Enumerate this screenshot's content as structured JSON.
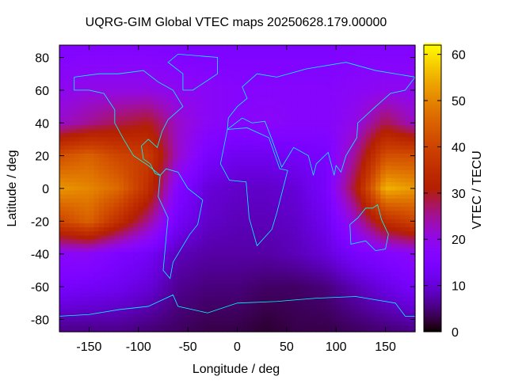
{
  "chart_data": {
    "type": "heatmap",
    "title": "UQRG-GIM Global VTEC maps 20250628.179.00000",
    "xlabel": "Longitude / deg",
    "ylabel": "Latitude / deg",
    "cblabel": "VTEC / TECU",
    "xlim": [
      -180,
      180
    ],
    "ylim": [
      -87.5,
      87.5
    ],
    "cbrange": [
      0,
      62
    ],
    "xticks": [
      -150,
      -100,
      -50,
      0,
      50,
      100,
      150
    ],
    "yticks": [
      80,
      60,
      40,
      20,
      0,
      -20,
      -40,
      -60,
      -80
    ],
    "cbticks": [
      0,
      10,
      20,
      30,
      40,
      50,
      60
    ],
    "palette": "black-purple-red-orange-yellow",
    "coastline_color": "#00ffff",
    "grid_lon": [
      -180,
      -150,
      -120,
      -90,
      -60,
      -30,
      0,
      30,
      60,
      90,
      120,
      150,
      180
    ],
    "grid_lat": [
      85,
      60,
      40,
      20,
      0,
      -20,
      -40,
      -60,
      -85
    ],
    "values": [
      [
        16,
        16,
        16,
        16,
        15,
        15,
        15,
        15,
        15,
        15,
        16,
        16,
        16
      ],
      [
        19,
        20,
        20,
        20,
        19,
        18,
        17,
        17,
        17,
        17,
        18,
        19,
        19
      ],
      [
        22,
        25,
        28,
        30,
        22,
        18,
        17,
        18,
        17,
        17,
        20,
        28,
        22
      ],
      [
        42,
        45,
        40,
        38,
        22,
        14,
        12,
        12,
        13,
        14,
        25,
        42,
        42
      ],
      [
        52,
        50,
        46,
        35,
        16,
        10,
        9,
        9,
        10,
        14,
        30,
        55,
        52
      ],
      [
        40,
        45,
        35,
        25,
        13,
        9,
        8,
        8,
        9,
        12,
        22,
        35,
        40
      ],
      [
        18,
        18,
        15,
        13,
        8,
        7,
        7,
        7,
        8,
        10,
        14,
        16,
        18
      ],
      [
        14,
        13,
        12,
        10,
        6,
        5,
        5,
        4,
        4,
        5,
        8,
        11,
        14
      ],
      [
        6,
        6,
        6,
        5,
        4,
        3,
        3,
        2,
        3,
        3,
        4,
        5,
        6
      ]
    ]
  }
}
